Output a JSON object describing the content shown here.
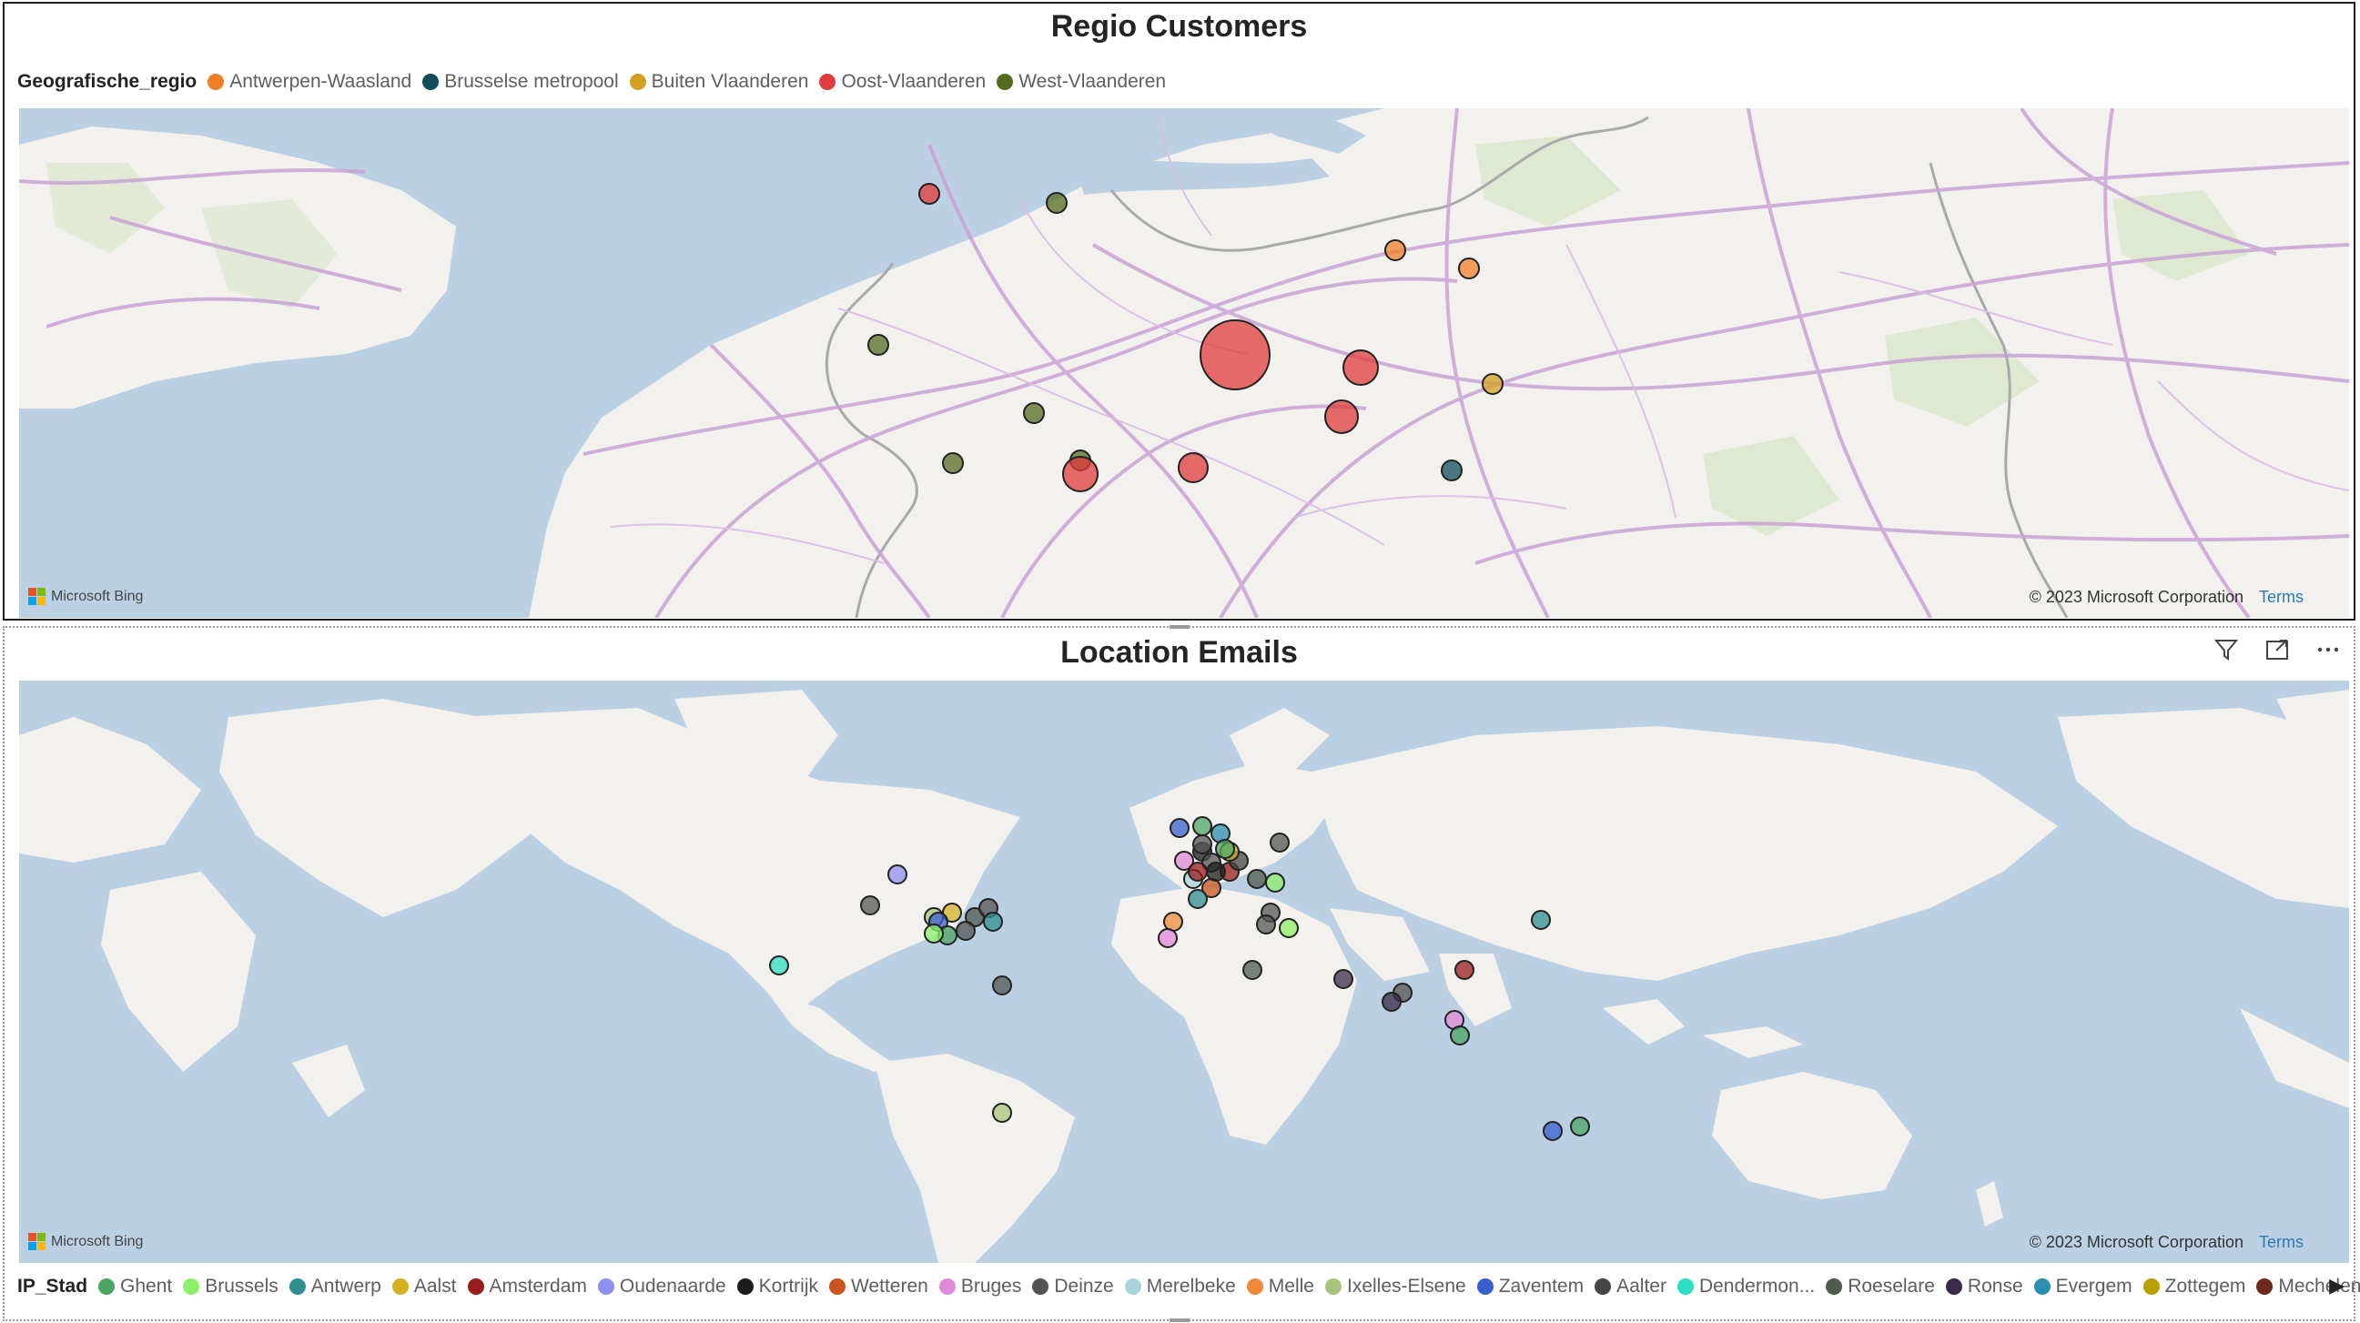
{
  "top_visual": {
    "title": "Regio Customers",
    "legend_title": "Geografische_regio",
    "legend": [
      {
        "label": "Antwerpen-Waasland",
        "color": "#f07f2a"
      },
      {
        "label": "Brusselse metropool",
        "color": "#0f4c5c"
      },
      {
        "label": "Buiten Vlaanderen",
        "color": "#d4a020"
      },
      {
        "label": "Oost-Vlaanderen",
        "color": "#e03b3b"
      },
      {
        "label": "West-Vlaanderen",
        "color": "#566b1f"
      }
    ],
    "map_provider": "Microsoft Bing",
    "copyright": "© 2023 Microsoft Corporation",
    "terms": "Terms"
  },
  "bottom_visual": {
    "title": "Location Emails",
    "toolbar": {
      "filter_icon": "filter-icon",
      "focus_icon": "focus-mode-icon",
      "more_icon": "more-options-icon"
    },
    "legend_title": "IP_Stad",
    "legend": [
      {
        "label": "Ghent",
        "color": "#4aa564"
      },
      {
        "label": "Brussels",
        "color": "#8ef06a"
      },
      {
        "label": "Antwerp",
        "color": "#2f8f8f"
      },
      {
        "label": "Aalst",
        "color": "#d4b020"
      },
      {
        "label": "Amsterdam",
        "color": "#9b1c1c"
      },
      {
        "label": "Oudenaarde",
        "color": "#8f8ff0"
      },
      {
        "label": "Kortrijk",
        "color": "#1c1c1c"
      },
      {
        "label": "Wetteren",
        "color": "#c9541c"
      },
      {
        "label": "Bruges",
        "color": "#e08ad9"
      },
      {
        "label": "Deinze",
        "color": "#555555"
      },
      {
        "label": "Merelbeke",
        "color": "#a8d4d9"
      },
      {
        "label": "Melle",
        "color": "#f08a3a"
      },
      {
        "label": "Ixelles-Elsene",
        "color": "#a8c47a"
      },
      {
        "label": "Zaventem",
        "color": "#3a5fcd"
      },
      {
        "label": "Aalter",
        "color": "#454545"
      },
      {
        "label": "Dendermon...",
        "color": "#2ae0c0"
      },
      {
        "label": "Roeselare",
        "color": "#4f5b4f"
      },
      {
        "label": "Ronse",
        "color": "#3b2b4b"
      },
      {
        "label": "Evergem",
        "color": "#2b8fb0"
      },
      {
        "label": "Zottegem",
        "color": "#b8a000"
      },
      {
        "label": "Mechelen",
        "color": "#6b2a1a"
      }
    ],
    "map_provider": "Microsoft Bing",
    "copyright": "© 2023 Microsoft Corporation",
    "terms": "Terms"
  }
}
